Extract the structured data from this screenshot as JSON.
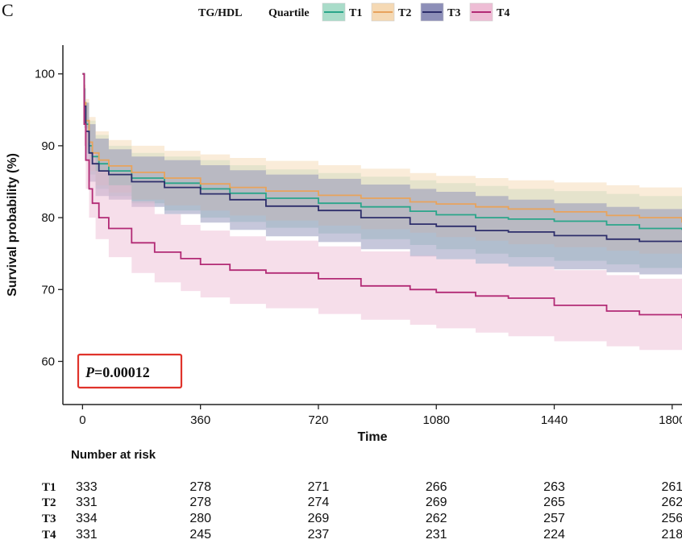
{
  "panel_label": "C",
  "legend": {
    "title": "TG/HDL",
    "subtitle": "Quartile",
    "entries": [
      {
        "label": "T1",
        "color": "#2aa58a",
        "fill": "#a9dcc9"
      },
      {
        "label": "T2",
        "color": "#e8a35c",
        "fill": "#f5d9b4"
      },
      {
        "label": "T3",
        "color": "#2d2e6b",
        "fill": "#8d8fb8"
      },
      {
        "label": "T4",
        "color": "#b22a75",
        "fill": "#eebdd5"
      }
    ]
  },
  "p_value": {
    "italic": "P",
    "rest": "=0.00012"
  },
  "risk_table": {
    "title": "Number at risk",
    "rows": [
      {
        "label": "T1",
        "values": [
          "333",
          "278",
          "271",
          "266",
          "263",
          "261"
        ]
      },
      {
        "label": "T2",
        "values": [
          "331",
          "278",
          "274",
          "269",
          "265",
          "262"
        ]
      },
      {
        "label": "T3",
        "values": [
          "334",
          "280",
          "269",
          "262",
          "257",
          "256"
        ]
      },
      {
        "label": "T4",
        "values": [
          "331",
          "245",
          "237",
          "231",
          "224",
          "218"
        ]
      }
    ]
  },
  "chart_data": {
    "type": "line",
    "xlabel": "Time",
    "ylabel": "Survival probability (%)",
    "xlim": [
      -60,
      1830
    ],
    "ylim": [
      54,
      104
    ],
    "xticks": [
      0,
      360,
      720,
      1080,
      1440,
      1800
    ],
    "yticks": [
      60,
      70,
      80,
      90,
      100
    ],
    "grid": false,
    "legend_position": "top",
    "series": [
      {
        "name": "T1",
        "color": "#2aa58a",
        "fill": "#a9dcc9",
        "points": [
          [
            0,
            100
          ],
          [
            5,
            96
          ],
          [
            10,
            93
          ],
          [
            20,
            90
          ],
          [
            30,
            88.5
          ],
          [
            50,
            87.5
          ],
          [
            80,
            86.5
          ],
          [
            150,
            85.5
          ],
          [
            250,
            84.8
          ],
          [
            360,
            84
          ],
          [
            450,
            83.4
          ],
          [
            560,
            82.7
          ],
          [
            720,
            82
          ],
          [
            850,
            81.5
          ],
          [
            1000,
            80.9
          ],
          [
            1080,
            80.4
          ],
          [
            1200,
            80
          ],
          [
            1300,
            79.8
          ],
          [
            1440,
            79.5
          ],
          [
            1600,
            79
          ],
          [
            1700,
            78.5
          ],
          [
            1830,
            78.3
          ]
        ],
        "lower": [
          [
            0,
            100
          ],
          [
            5,
            93
          ],
          [
            10,
            89
          ],
          [
            20,
            86
          ],
          [
            40,
            84
          ],
          [
            80,
            83
          ],
          [
            150,
            82
          ],
          [
            250,
            81
          ],
          [
            360,
            80
          ],
          [
            450,
            79.4
          ],
          [
            560,
            78.6
          ],
          [
            720,
            77.8
          ],
          [
            850,
            77
          ],
          [
            1000,
            76.2
          ],
          [
            1080,
            75.6
          ],
          [
            1200,
            75
          ],
          [
            1300,
            74.5
          ],
          [
            1440,
            74
          ],
          [
            1600,
            73.5
          ],
          [
            1700,
            73
          ],
          [
            1830,
            72.5
          ]
        ],
        "upper": [
          [
            0,
            100
          ],
          [
            5,
            98
          ],
          [
            10,
            96
          ],
          [
            20,
            93.5
          ],
          [
            40,
            91.5
          ],
          [
            80,
            90
          ],
          [
            150,
            89
          ],
          [
            250,
            88.5
          ],
          [
            360,
            88
          ],
          [
            450,
            87.3
          ],
          [
            560,
            86.7
          ],
          [
            720,
            86.2
          ],
          [
            850,
            85.7
          ],
          [
            1000,
            85.2
          ],
          [
            1080,
            84.8
          ],
          [
            1200,
            84.4
          ],
          [
            1300,
            84
          ],
          [
            1440,
            83.7
          ],
          [
            1600,
            83.3
          ],
          [
            1700,
            83
          ],
          [
            1830,
            82.7
          ]
        ]
      },
      {
        "name": "T2",
        "color": "#e8a35c",
        "fill": "#f5d9b4",
        "points": [
          [
            0,
            100
          ],
          [
            5,
            96
          ],
          [
            10,
            93.5
          ],
          [
            20,
            90.5
          ],
          [
            30,
            89
          ],
          [
            50,
            88
          ],
          [
            80,
            87.2
          ],
          [
            150,
            86.3
          ],
          [
            250,
            85.5
          ],
          [
            360,
            84.7
          ],
          [
            450,
            84.2
          ],
          [
            560,
            83.7
          ],
          [
            720,
            83.1
          ],
          [
            850,
            82.7
          ],
          [
            1000,
            82.2
          ],
          [
            1080,
            81.9
          ],
          [
            1200,
            81.5
          ],
          [
            1300,
            81.2
          ],
          [
            1440,
            80.8
          ],
          [
            1600,
            80.3
          ],
          [
            1700,
            80
          ],
          [
            1830,
            79.3
          ]
        ],
        "lower": [
          [
            0,
            100
          ],
          [
            5,
            93.5
          ],
          [
            10,
            89.5
          ],
          [
            20,
            86.5
          ],
          [
            40,
            84.5
          ],
          [
            80,
            83.5
          ],
          [
            150,
            82.5
          ],
          [
            250,
            81.7
          ],
          [
            360,
            81
          ],
          [
            450,
            80.3
          ],
          [
            560,
            79.6
          ],
          [
            720,
            78.9
          ],
          [
            850,
            78.4
          ],
          [
            1000,
            77.9
          ],
          [
            1080,
            77.3
          ],
          [
            1200,
            76.8
          ],
          [
            1300,
            76.3
          ],
          [
            1440,
            75.9
          ],
          [
            1600,
            75.4
          ],
          [
            1700,
            75
          ],
          [
            1830,
            74.5
          ]
        ],
        "upper": [
          [
            0,
            100
          ],
          [
            5,
            98.5
          ],
          [
            10,
            96.5
          ],
          [
            20,
            94
          ],
          [
            40,
            92
          ],
          [
            80,
            90.8
          ],
          [
            150,
            90
          ],
          [
            250,
            89.3
          ],
          [
            360,
            88.8
          ],
          [
            450,
            88.3
          ],
          [
            560,
            87.9
          ],
          [
            720,
            87.3
          ],
          [
            850,
            86.8
          ],
          [
            1000,
            86.2
          ],
          [
            1080,
            85.8
          ],
          [
            1200,
            85.5
          ],
          [
            1300,
            85.2
          ],
          [
            1440,
            84.9
          ],
          [
            1600,
            84.5
          ],
          [
            1700,
            84.2
          ],
          [
            1830,
            83.8
          ]
        ]
      },
      {
        "name": "T3",
        "color": "#2d2e6b",
        "fill": "#8d8fb8",
        "points": [
          [
            0,
            100
          ],
          [
            5,
            95.5
          ],
          [
            10,
            92
          ],
          [
            20,
            89
          ],
          [
            30,
            87.5
          ],
          [
            50,
            86.5
          ],
          [
            80,
            86
          ],
          [
            150,
            85
          ],
          [
            250,
            84.2
          ],
          [
            360,
            83.3
          ],
          [
            450,
            82.5
          ],
          [
            560,
            81.6
          ],
          [
            720,
            81
          ],
          [
            850,
            80
          ],
          [
            1000,
            79.1
          ],
          [
            1080,
            78.8
          ],
          [
            1200,
            78.2
          ],
          [
            1300,
            78
          ],
          [
            1440,
            77.5
          ],
          [
            1600,
            77
          ],
          [
            1700,
            76.7
          ],
          [
            1830,
            76.7
          ]
        ],
        "lower": [
          [
            0,
            100
          ],
          [
            5,
            92.5
          ],
          [
            10,
            88
          ],
          [
            20,
            85
          ],
          [
            40,
            83
          ],
          [
            80,
            82.5
          ],
          [
            150,
            81.5
          ],
          [
            250,
            80.5
          ],
          [
            360,
            79.3
          ],
          [
            450,
            78.3
          ],
          [
            560,
            77.4
          ],
          [
            720,
            76.6
          ],
          [
            850,
            75.6
          ],
          [
            1000,
            74.6
          ],
          [
            1080,
            74.2
          ],
          [
            1200,
            73.6
          ],
          [
            1300,
            73.2
          ],
          [
            1440,
            72.8
          ],
          [
            1600,
            72.4
          ],
          [
            1700,
            72.1
          ],
          [
            1830,
            72
          ]
        ],
        "upper": [
          [
            0,
            100
          ],
          [
            5,
            98
          ],
          [
            10,
            96
          ],
          [
            20,
            93
          ],
          [
            40,
            91
          ],
          [
            80,
            89.5
          ],
          [
            150,
            88.5
          ],
          [
            250,
            88
          ],
          [
            360,
            87.3
          ],
          [
            450,
            86.6
          ],
          [
            560,
            86
          ],
          [
            720,
            85.4
          ],
          [
            850,
            84.6
          ],
          [
            1000,
            84
          ],
          [
            1080,
            83.6
          ],
          [
            1200,
            83
          ],
          [
            1300,
            82.5
          ],
          [
            1440,
            82
          ],
          [
            1600,
            81.5
          ],
          [
            1700,
            81.2
          ],
          [
            1830,
            81
          ]
        ]
      },
      {
        "name": "T4",
        "color": "#b22a75",
        "fill": "#eebdd5",
        "points": [
          [
            0,
            100
          ],
          [
            5,
            93
          ],
          [
            10,
            88
          ],
          [
            20,
            84
          ],
          [
            30,
            82
          ],
          [
            50,
            80
          ],
          [
            80,
            78.5
          ],
          [
            150,
            76.5
          ],
          [
            220,
            75.2
          ],
          [
            300,
            74.3
          ],
          [
            360,
            73.5
          ],
          [
            450,
            72.7
          ],
          [
            560,
            72.3
          ],
          [
            720,
            71.5
          ],
          [
            850,
            70.5
          ],
          [
            1000,
            70
          ],
          [
            1080,
            69.6
          ],
          [
            1200,
            69.1
          ],
          [
            1300,
            68.8
          ],
          [
            1440,
            67.8
          ],
          [
            1600,
            67
          ],
          [
            1700,
            66.5
          ],
          [
            1830,
            66
          ]
        ],
        "lower": [
          [
            0,
            100
          ],
          [
            5,
            90
          ],
          [
            10,
            84
          ],
          [
            20,
            80
          ],
          [
            40,
            77
          ],
          [
            80,
            74.5
          ],
          [
            150,
            72.3
          ],
          [
            220,
            71
          ],
          [
            300,
            69.8
          ],
          [
            360,
            68.9
          ],
          [
            450,
            68
          ],
          [
            560,
            67.4
          ],
          [
            720,
            66.6
          ],
          [
            850,
            65.8
          ],
          [
            1000,
            65.1
          ],
          [
            1080,
            64.6
          ],
          [
            1200,
            64
          ],
          [
            1300,
            63.5
          ],
          [
            1440,
            62.8
          ],
          [
            1600,
            62.1
          ],
          [
            1700,
            61.6
          ],
          [
            1830,
            61
          ]
        ],
        "upper": [
          [
            0,
            100
          ],
          [
            5,
            96
          ],
          [
            10,
            92.5
          ],
          [
            20,
            89
          ],
          [
            40,
            86.5
          ],
          [
            80,
            84.5
          ],
          [
            150,
            82.3
          ],
          [
            220,
            80.5
          ],
          [
            300,
            79
          ],
          [
            360,
            78.2
          ],
          [
            450,
            77.4
          ],
          [
            560,
            76.8
          ],
          [
            720,
            76
          ],
          [
            850,
            75.3
          ],
          [
            1000,
            74.7
          ],
          [
            1080,
            74.2
          ],
          [
            1200,
            73.6
          ],
          [
            1300,
            73.2
          ],
          [
            1440,
            72.7
          ],
          [
            1600,
            72
          ],
          [
            1700,
            71.5
          ],
          [
            1830,
            71
          ]
        ]
      }
    ]
  }
}
